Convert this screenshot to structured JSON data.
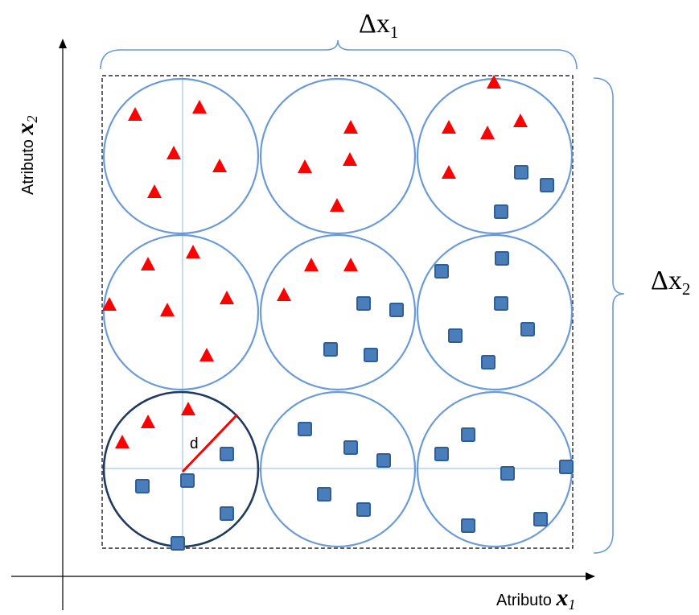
{
  "labels": {
    "delta_x1": {
      "base": "Δx",
      "sub": "1"
    },
    "delta_x2": {
      "base": "Δx",
      "sub": "2"
    },
    "x_axis": {
      "prefix": "Atributo ",
      "var": "x",
      "sub": "1"
    },
    "y_axis": {
      "prefix": "Atributo ",
      "var": "x",
      "sub": "2"
    },
    "radius": "d"
  },
  "colors": {
    "triangle": "#ff0000",
    "square_fill": "#4a7ebb",
    "square_stroke": "#2f5f96",
    "circle": "#6a9bd8",
    "highlight_circle": "#1f3a5f",
    "radius_line": "#ff0000",
    "guide_line": "#b8d0ea",
    "axis": "#000000",
    "dashed_box": "#000000"
  },
  "cells": [
    {
      "id": "top-left",
      "highlight": false,
      "triangles": [
        [
          168,
          142
        ],
        [
          248,
          133
        ],
        [
          216,
          190
        ],
        [
          273,
          206
        ],
        [
          192,
          238
        ]
      ],
      "squares": []
    },
    {
      "id": "top-center",
      "highlight": false,
      "triangles": [
        [
          436,
          158
        ],
        [
          435,
          198
        ],
        [
          379,
          207
        ],
        [
          419,
          255
        ]
      ],
      "squares": []
    },
    {
      "id": "top-right",
      "highlight": false,
      "triangles": [
        [
          614,
          102
        ],
        [
          558,
          158
        ],
        [
          606,
          165
        ],
        [
          647,
          150
        ],
        [
          558,
          214
        ]
      ],
      "squares": [
        [
          648,
          214
        ],
        [
          680,
          230
        ],
        [
          623,
          263
        ]
      ]
    },
    {
      "id": "middle-left",
      "highlight": false,
      "triangles": [
        [
          184,
          328
        ],
        [
          240,
          313
        ],
        [
          136,
          378
        ],
        [
          208,
          385
        ],
        [
          282,
          370
        ],
        [
          257,
          441
        ]
      ],
      "squares": []
    },
    {
      "id": "middle-center",
      "highlight": false,
      "triangles": [
        [
          387,
          329
        ],
        [
          436,
          329
        ],
        [
          353,
          366
        ]
      ],
      "squares": [
        [
          452,
          377
        ],
        [
          493,
          385
        ],
        [
          411,
          434
        ],
        [
          461,
          441
        ]
      ]
    },
    {
      "id": "middle-right",
      "highlight": false,
      "triangles": [],
      "squares": [
        [
          549,
          337
        ],
        [
          624,
          321
        ],
        [
          623,
          377
        ],
        [
          656,
          409
        ],
        [
          566,
          417
        ],
        [
          607,
          450
        ]
      ]
    },
    {
      "id": "bottom-left",
      "highlight": true,
      "triangles": [
        [
          184,
          524
        ],
        [
          234,
          508
        ],
        [
          152,
          549
        ]
      ],
      "squares": [
        [
          282,
          564
        ],
        [
          233,
          597
        ],
        [
          177,
          604
        ],
        [
          282,
          638
        ],
        [
          221,
          675
        ]
      ]
    },
    {
      "id": "bottom-center",
      "highlight": false,
      "triangles": [],
      "squares": [
        [
          379,
          533
        ],
        [
          436,
          556
        ],
        [
          477,
          572
        ],
        [
          403,
          614
        ],
        [
          452,
          633
        ]
      ]
    },
    {
      "id": "bottom-right",
      "highlight": false,
      "triangles": [],
      "squares": [
        [
          582,
          540
        ],
        [
          549,
          564
        ],
        [
          704,
          580
        ],
        [
          631,
          588
        ],
        [
          672,
          645
        ],
        [
          582,
          653
        ]
      ]
    }
  ]
}
